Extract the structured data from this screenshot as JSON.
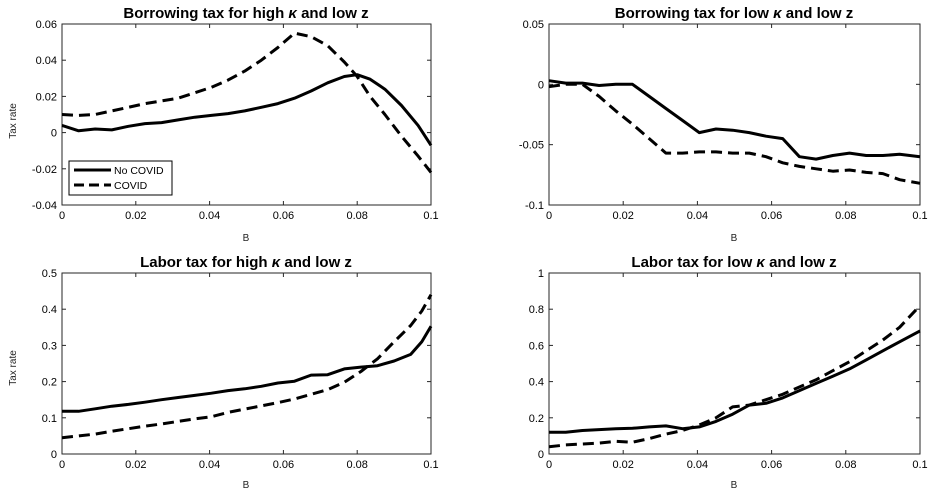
{
  "chart_data": [
    {
      "type": "line",
      "title_parts": [
        "Borrowing tax for high ",
        "κ",
        " and low z"
      ],
      "xlabel": "B",
      "ylabel": "Tax rate",
      "xlim": [
        0,
        0.1
      ],
      "ylim": [
        -0.04,
        0.06
      ],
      "xticks": [
        0,
        0.02,
        0.04,
        0.06,
        0.08,
        0.1
      ],
      "xtick_labels": [
        "0",
        "0.02",
        "0.04",
        "0.06",
        "0.08",
        "0.1"
      ],
      "yticks": [
        -0.04,
        -0.02,
        0,
        0.02,
        0.04,
        0.06
      ],
      "ytick_labels": [
        "-0.04",
        "-0.02",
        "0",
        "0.02",
        "0.04",
        "0.06"
      ],
      "legend": {
        "position": "lower-left",
        "entries": [
          "No COVID",
          "COVID"
        ]
      },
      "series": [
        {
          "name": "No COVID",
          "style": "solid",
          "x": [
            0,
            0.0045,
            0.009,
            0.0135,
            0.018,
            0.0225,
            0.027,
            0.0315,
            0.036,
            0.0405,
            0.045,
            0.0495,
            0.054,
            0.0585,
            0.063,
            0.0675,
            0.072,
            0.0765,
            0.08,
            0.0835,
            0.0875,
            0.092,
            0.0965,
            0.1
          ],
          "y": [
            0.004,
            0.001,
            0.002,
            0.0015,
            0.0035,
            0.005,
            0.0055,
            0.007,
            0.0085,
            0.0095,
            0.0105,
            0.012,
            0.014,
            0.016,
            0.019,
            0.023,
            0.0275,
            0.031,
            0.032,
            0.0295,
            0.024,
            0.015,
            0.004,
            -0.007
          ]
        },
        {
          "name": "COVID",
          "style": "dashed",
          "x": [
            0,
            0.0045,
            0.009,
            0.0135,
            0.018,
            0.0225,
            0.027,
            0.0315,
            0.036,
            0.0405,
            0.045,
            0.0495,
            0.054,
            0.0585,
            0.063,
            0.0675,
            0.072,
            0.0765,
            0.08,
            0.0835,
            0.0875,
            0.092,
            0.0965,
            0.1
          ],
          "y": [
            0.01,
            0.0095,
            0.01,
            0.012,
            0.014,
            0.016,
            0.0175,
            0.019,
            0.022,
            0.025,
            0.029,
            0.034,
            0.04,
            0.047,
            0.055,
            0.053,
            0.048,
            0.039,
            0.031,
            0.02,
            0.01,
            -0.002,
            -0.013,
            -0.022
          ]
        }
      ]
    },
    {
      "type": "line",
      "title_parts": [
        "Borrowing tax for low ",
        "κ",
        " and low z"
      ],
      "xlabel": "B",
      "ylabel": "",
      "xlim": [
        0,
        0.1
      ],
      "ylim": [
        -0.1,
        0.05
      ],
      "xticks": [
        0,
        0.02,
        0.04,
        0.06,
        0.08,
        0.1
      ],
      "xtick_labels": [
        "0",
        "0.02",
        "0.04",
        "0.06",
        "0.08",
        "0.1"
      ],
      "yticks": [
        -0.1,
        -0.05,
        0,
        0.05
      ],
      "ytick_labels": [
        "-0.1",
        "-0.05",
        "0",
        "0.05"
      ],
      "series": [
        {
          "name": "No COVID",
          "style": "solid",
          "x": [
            0,
            0.0045,
            0.009,
            0.0135,
            0.018,
            0.0225,
            0.027,
            0.0315,
            0.036,
            0.0405,
            0.045,
            0.0495,
            0.054,
            0.0585,
            0.063,
            0.0675,
            0.072,
            0.0765,
            0.081,
            0.0855,
            0.09,
            0.0945,
            0.1
          ],
          "y": [
            0.003,
            0.001,
            0.001,
            -0.001,
            0.0,
            0.0,
            -0.01,
            -0.02,
            -0.03,
            -0.04,
            -0.037,
            -0.038,
            -0.04,
            -0.043,
            -0.045,
            -0.06,
            -0.062,
            -0.059,
            -0.057,
            -0.059,
            -0.059,
            -0.058,
            -0.06
          ]
        },
        {
          "name": "COVID",
          "style": "dashed",
          "x": [
            0,
            0.0045,
            0.009,
            0.0135,
            0.018,
            0.0225,
            0.027,
            0.0315,
            0.036,
            0.0405,
            0.045,
            0.0495,
            0.054,
            0.0585,
            0.063,
            0.0675,
            0.072,
            0.0765,
            0.081,
            0.0855,
            0.09,
            0.0945,
            0.1
          ],
          "y": [
            -0.002,
            0.0,
            0.0,
            -0.01,
            -0.022,
            -0.033,
            -0.045,
            -0.057,
            -0.057,
            -0.056,
            -0.056,
            -0.057,
            -0.057,
            -0.06,
            -0.065,
            -0.068,
            -0.07,
            -0.072,
            -0.071,
            -0.073,
            -0.074,
            -0.079,
            -0.082
          ]
        }
      ]
    },
    {
      "type": "line",
      "title_parts": [
        "Labor tax for high ",
        "κ",
        " and low z"
      ],
      "xlabel": "B",
      "ylabel": "Tax rate",
      "xlim": [
        0,
        0.1
      ],
      "ylim": [
        0,
        0.5
      ],
      "xticks": [
        0,
        0.02,
        0.04,
        0.06,
        0.08,
        0.1
      ],
      "xtick_labels": [
        "0",
        "0.02",
        "0.04",
        "0.06",
        "0.08",
        "0.1"
      ],
      "yticks": [
        0,
        0.1,
        0.2,
        0.3,
        0.4,
        0.5
      ],
      "ytick_labels": [
        "0",
        "0.1",
        "0.2",
        "0.3",
        "0.4",
        "0.5"
      ],
      "series": [
        {
          "name": "No COVID",
          "style": "solid",
          "x": [
            0,
            0.0045,
            0.009,
            0.0135,
            0.018,
            0.0225,
            0.027,
            0.0315,
            0.036,
            0.0405,
            0.045,
            0.0495,
            0.054,
            0.0585,
            0.063,
            0.0675,
            0.072,
            0.0765,
            0.081,
            0.0855,
            0.09,
            0.0945,
            0.0975,
            0.1
          ],
          "y": [
            0.118,
            0.118,
            0.125,
            0.132,
            0.137,
            0.143,
            0.15,
            0.156,
            0.162,
            0.168,
            0.175,
            0.18,
            0.187,
            0.196,
            0.201,
            0.218,
            0.219,
            0.235,
            0.24,
            0.244,
            0.257,
            0.275,
            0.31,
            0.353
          ]
        },
        {
          "name": "COVID",
          "style": "dashed",
          "x": [
            0,
            0.0045,
            0.009,
            0.0135,
            0.018,
            0.0225,
            0.027,
            0.0315,
            0.036,
            0.0405,
            0.045,
            0.0495,
            0.054,
            0.0585,
            0.063,
            0.0675,
            0.072,
            0.0765,
            0.081,
            0.0855,
            0.09,
            0.0945,
            0.0975,
            0.1
          ],
          "y": [
            0.045,
            0.05,
            0.055,
            0.063,
            0.07,
            0.077,
            0.083,
            0.09,
            0.097,
            0.103,
            0.115,
            0.124,
            0.133,
            0.142,
            0.152,
            0.165,
            0.178,
            0.198,
            0.228,
            0.263,
            0.31,
            0.355,
            0.395,
            0.44
          ]
        }
      ]
    },
    {
      "type": "line",
      "title_parts": [
        "Labor tax for low ",
        "κ",
        " and low z"
      ],
      "xlabel": "B",
      "ylabel": "",
      "xlim": [
        0,
        0.1
      ],
      "ylim": [
        0,
        1
      ],
      "xticks": [
        0,
        0.02,
        0.04,
        0.06,
        0.08,
        0.1
      ],
      "xtick_labels": [
        "0",
        "0.02",
        "0.04",
        "0.06",
        "0.08",
        "0.1"
      ],
      "yticks": [
        0,
        0.2,
        0.4,
        0.6,
        0.8,
        1
      ],
      "ytick_labels": [
        "0",
        "0.2",
        "0.4",
        "0.6",
        "0.8",
        "1"
      ],
      "series": [
        {
          "name": "No COVID",
          "style": "solid",
          "x": [
            0,
            0.0045,
            0.009,
            0.0135,
            0.018,
            0.0225,
            0.027,
            0.0315,
            0.036,
            0.0405,
            0.045,
            0.0495,
            0.054,
            0.0585,
            0.063,
            0.0675,
            0.072,
            0.0765,
            0.081,
            0.0855,
            0.09,
            0.0945,
            0.1
          ],
          "y": [
            0.12,
            0.12,
            0.13,
            0.135,
            0.14,
            0.142,
            0.15,
            0.155,
            0.14,
            0.15,
            0.18,
            0.22,
            0.27,
            0.28,
            0.31,
            0.35,
            0.39,
            0.43,
            0.47,
            0.52,
            0.57,
            0.62,
            0.68
          ]
        },
        {
          "name": "COVID",
          "style": "dashed",
          "x": [
            0,
            0.0045,
            0.009,
            0.0135,
            0.018,
            0.0225,
            0.027,
            0.0315,
            0.036,
            0.0405,
            0.045,
            0.0495,
            0.054,
            0.0585,
            0.063,
            0.0675,
            0.072,
            0.0765,
            0.081,
            0.0855,
            0.09,
            0.0945,
            0.1
          ],
          "y": [
            0.04,
            0.05,
            0.055,
            0.06,
            0.07,
            0.065,
            0.085,
            0.11,
            0.13,
            0.16,
            0.2,
            0.26,
            0.27,
            0.3,
            0.33,
            0.37,
            0.41,
            0.46,
            0.51,
            0.57,
            0.63,
            0.7,
            0.82
          ]
        }
      ]
    }
  ]
}
